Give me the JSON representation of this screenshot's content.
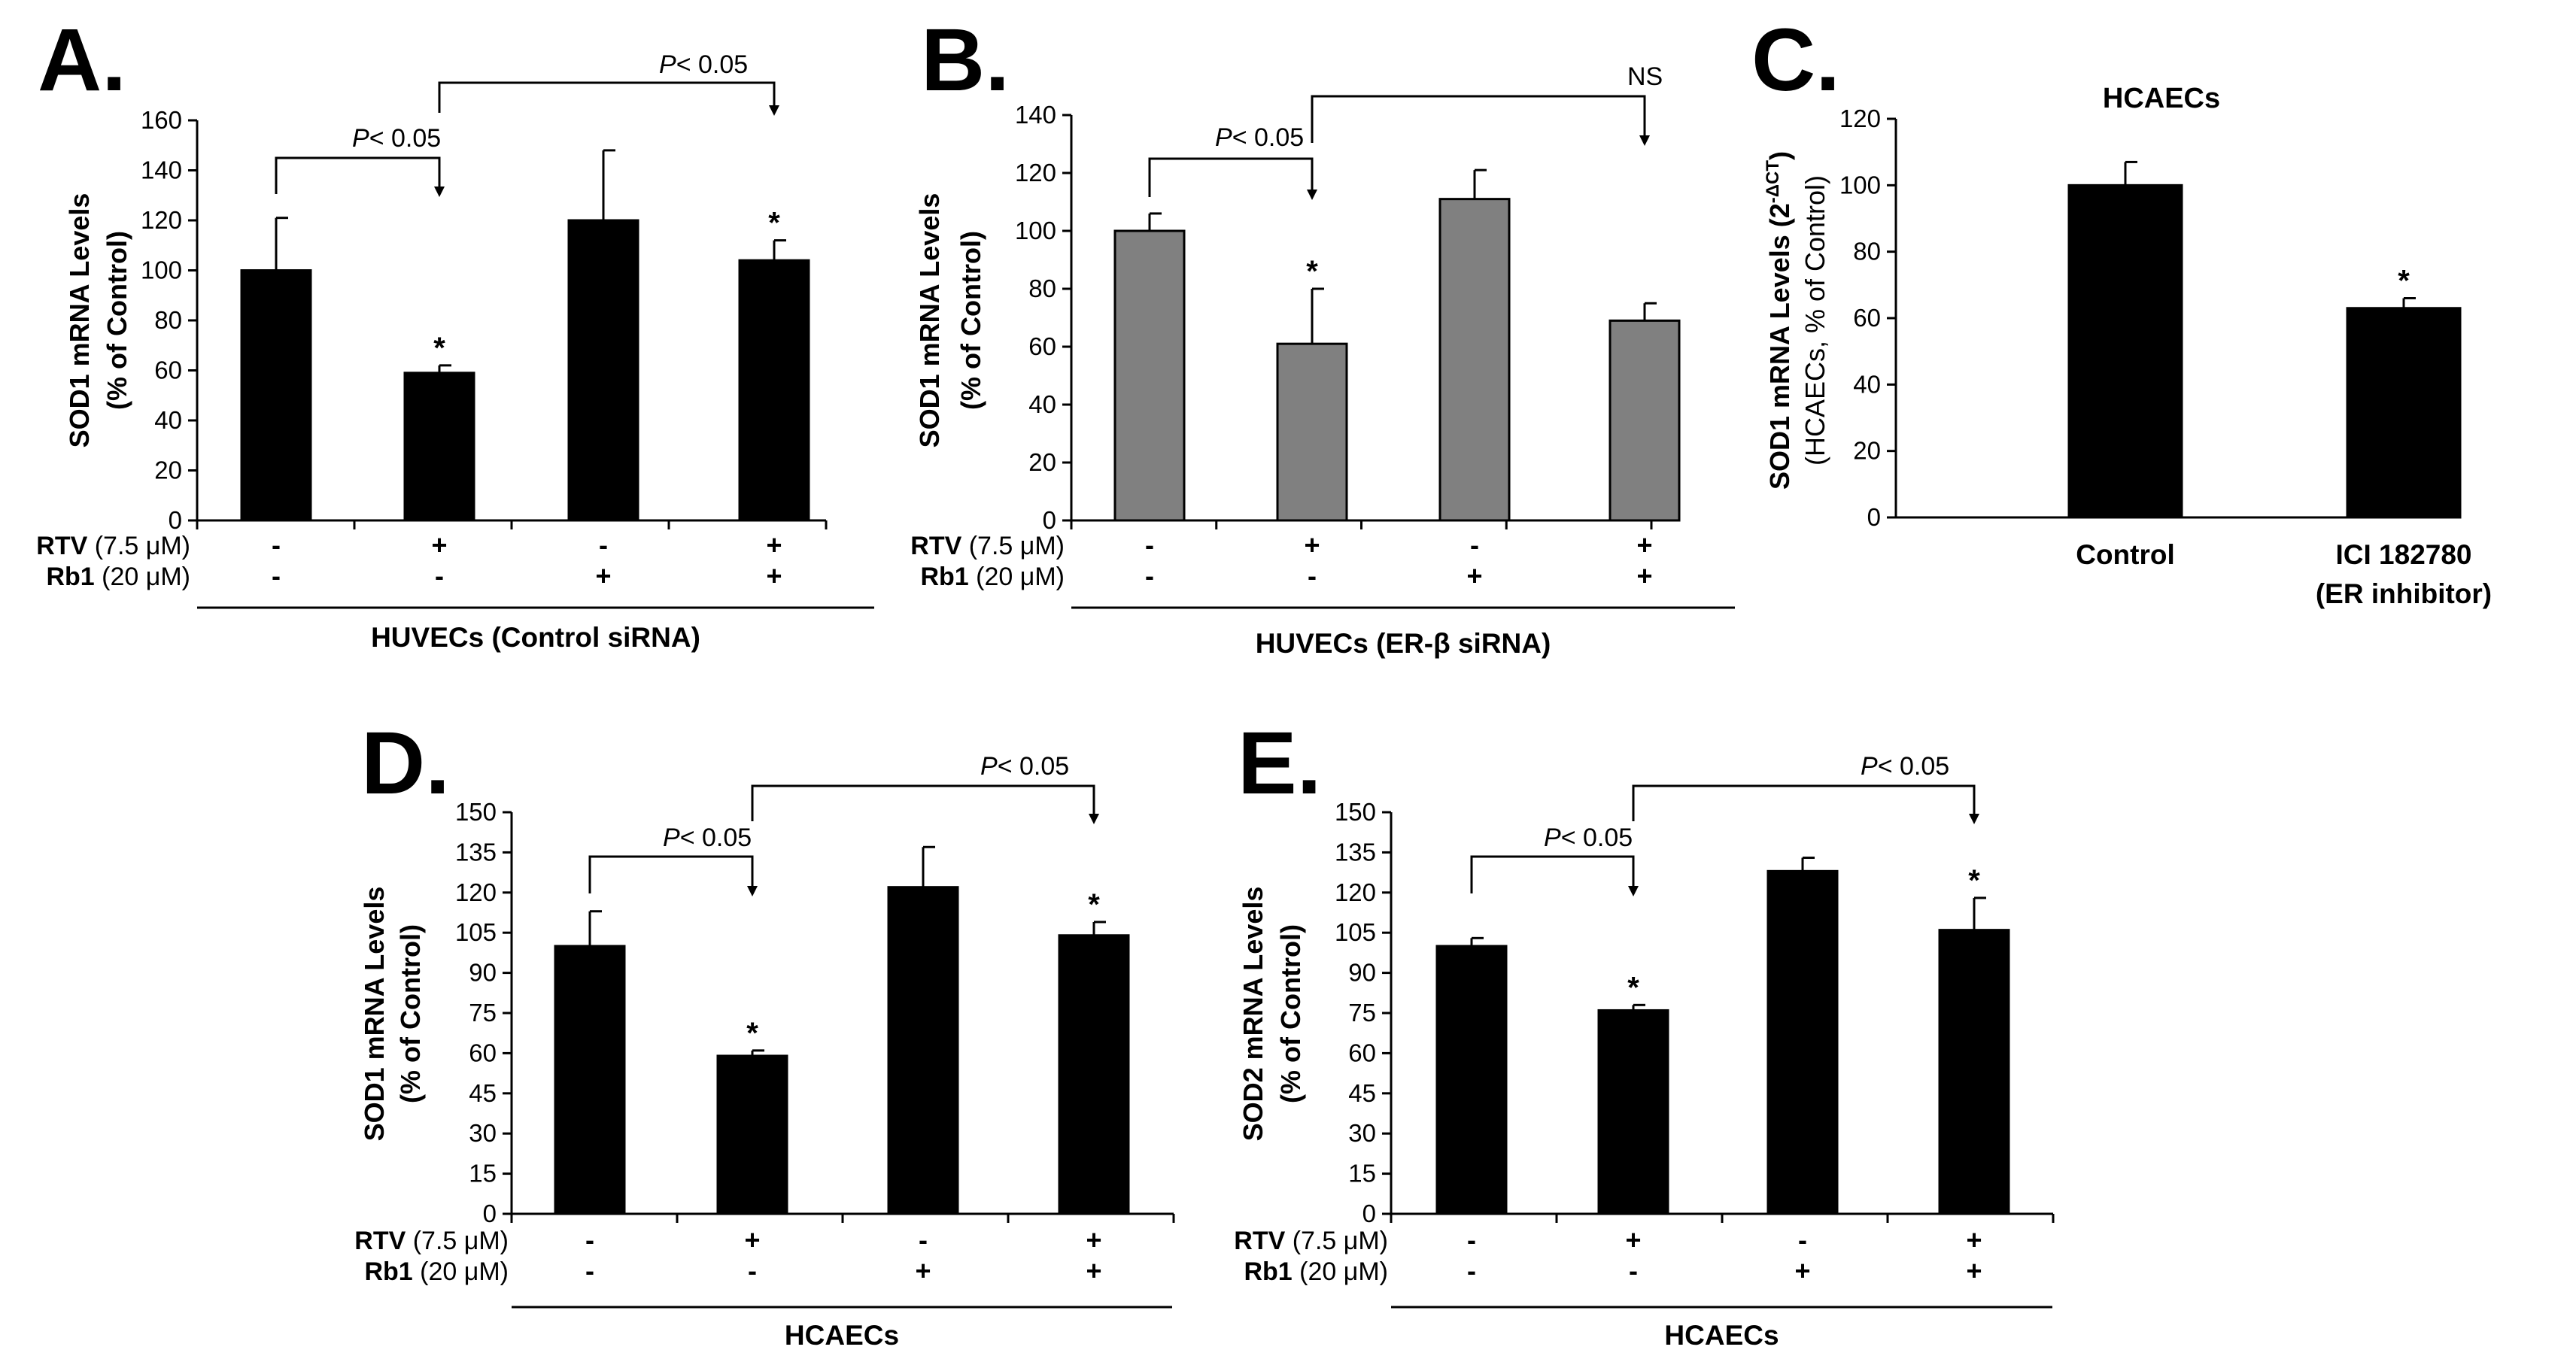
{
  "chart_data": [
    {
      "id": "A",
      "type": "bar",
      "letter": "A.",
      "ylabel": "SOD1 mRNA Levels",
      "ylabel2": "(% of Control)",
      "ylim": [
        0,
        160
      ],
      "yticks": [
        "0",
        "20",
        "40",
        "60",
        "80",
        "100",
        "120",
        "140",
        "160"
      ],
      "bar_color": "#000000",
      "values": [
        100,
        59,
        120,
        104
      ],
      "errors": [
        21,
        3,
        28,
        8
      ],
      "significant": [
        false,
        true,
        false,
        true
      ],
      "row1_label": "RTV",
      "row1_conc": " (7.5 μM)",
      "row1": [
        "-",
        "+",
        "-",
        "+"
      ],
      "row2_label": "Rb1",
      "row2_conc": " (20 μM)",
      "row2": [
        "-",
        "-",
        "+",
        "+"
      ],
      "group_label": "HUVECs (Control siRNA)",
      "comparisons": [
        {
          "from": 0,
          "to": 1,
          "label_p": "P",
          "label_rest": "< 0.05"
        },
        {
          "from": 1,
          "to": 3,
          "label_p": "P",
          "label_rest": "< 0.05"
        }
      ],
      "star": "*"
    },
    {
      "id": "B",
      "type": "bar",
      "letter": "B.",
      "ylabel": "SOD1 mRNA Levels",
      "ylabel2": "(% of Control)",
      "ylim": [
        0,
        140
      ],
      "yticks": [
        "0",
        "20",
        "40",
        "60",
        "80",
        "100",
        "120",
        "140"
      ],
      "bar_color": "#808080",
      "values": [
        100,
        61,
        111,
        69
      ],
      "errors": [
        6,
        19,
        10,
        6
      ],
      "significant": [
        false,
        true,
        false,
        false
      ],
      "row1_label": "RTV",
      "row1_conc": " (7.5 μM)",
      "row1": [
        "-",
        "+",
        "-",
        "+"
      ],
      "row2_label": "Rb1",
      "row2_conc": " (20 μM)",
      "row2": [
        "-",
        "-",
        "+",
        "+"
      ],
      "group_label": "HUVECs (ER-β siRNA)",
      "comparisons": [
        {
          "from": 0,
          "to": 1,
          "label_p": "P",
          "label_rest": "< 0.05"
        },
        {
          "from": 1,
          "to": 3,
          "label_p": "",
          "label_rest": "NS"
        }
      ],
      "star": "*"
    },
    {
      "id": "C",
      "type": "bar",
      "letter": "C.",
      "title": "HCAECs",
      "ylabel": "SOD1 mRNA Levels (2",
      "ylabel_sup": "-ΔCT",
      "ylabel_tail": ")",
      "ylabel2": "(HCAECs,  % of Control)",
      "ylim": [
        0,
        120
      ],
      "yticks": [
        "0",
        "20",
        "40",
        "60",
        "80",
        "100",
        "120"
      ],
      "bar_color": "#000000",
      "categories": [
        "Control",
        "ICI 182780"
      ],
      "categories_line2": [
        "",
        "(ER inhibitor)"
      ],
      "values": [
        100,
        63
      ],
      "errors": [
        7,
        3
      ],
      "significant": [
        false,
        true
      ],
      "star": "*"
    },
    {
      "id": "D",
      "type": "bar",
      "letter": "D.",
      "ylabel": "SOD1 mRNA Levels",
      "ylabel2": "(% of Control)",
      "ylim": [
        0,
        150
      ],
      "yticks": [
        "0",
        "15",
        "30",
        "45",
        "60",
        "75",
        "90",
        "105",
        "120",
        "135",
        "150"
      ],
      "bar_color": "#000000",
      "values": [
        100,
        59,
        122,
        104
      ],
      "errors": [
        13,
        2,
        15,
        5
      ],
      "significant": [
        false,
        true,
        false,
        true
      ],
      "row1_label": "RTV",
      "row1_conc": " (7.5 μM)",
      "row1": [
        "-",
        "+",
        "-",
        "+"
      ],
      "row2_label": "Rb1",
      "row2_conc": " (20 μM)",
      "row2": [
        "-",
        "-",
        "+",
        "+"
      ],
      "group_label": "HCAECs",
      "comparisons": [
        {
          "from": 0,
          "to": 1,
          "label_p": "P",
          "label_rest": "< 0.05"
        },
        {
          "from": 1,
          "to": 3,
          "label_p": "P",
          "label_rest": "< 0.05"
        }
      ],
      "star": "*"
    },
    {
      "id": "E",
      "type": "bar",
      "letter": "E.",
      "ylabel": "SOD2 mRNA Levels",
      "ylabel2": "(% of Control)",
      "ylim": [
        0,
        150
      ],
      "yticks": [
        "0",
        "15",
        "30",
        "45",
        "60",
        "75",
        "90",
        "105",
        "120",
        "135",
        "150"
      ],
      "bar_color": "#000000",
      "values": [
        100,
        76,
        128,
        106
      ],
      "errors": [
        3,
        2,
        5,
        12
      ],
      "significant": [
        false,
        true,
        false,
        true
      ],
      "row1_label": "RTV",
      "row1_conc": " (7.5 μM)",
      "row1": [
        "-",
        "+",
        "-",
        "+"
      ],
      "row2_label": "Rb1",
      "row2_conc": " (20 μM)",
      "row2": [
        "-",
        "-",
        "+",
        "+"
      ],
      "group_label": "HCAECs",
      "comparisons": [
        {
          "from": 0,
          "to": 1,
          "label_p": "P",
          "label_rest": "< 0.05"
        },
        {
          "from": 1,
          "to": 3,
          "label_p": "P",
          "label_rest": "< 0.05"
        }
      ],
      "star": "*"
    }
  ]
}
